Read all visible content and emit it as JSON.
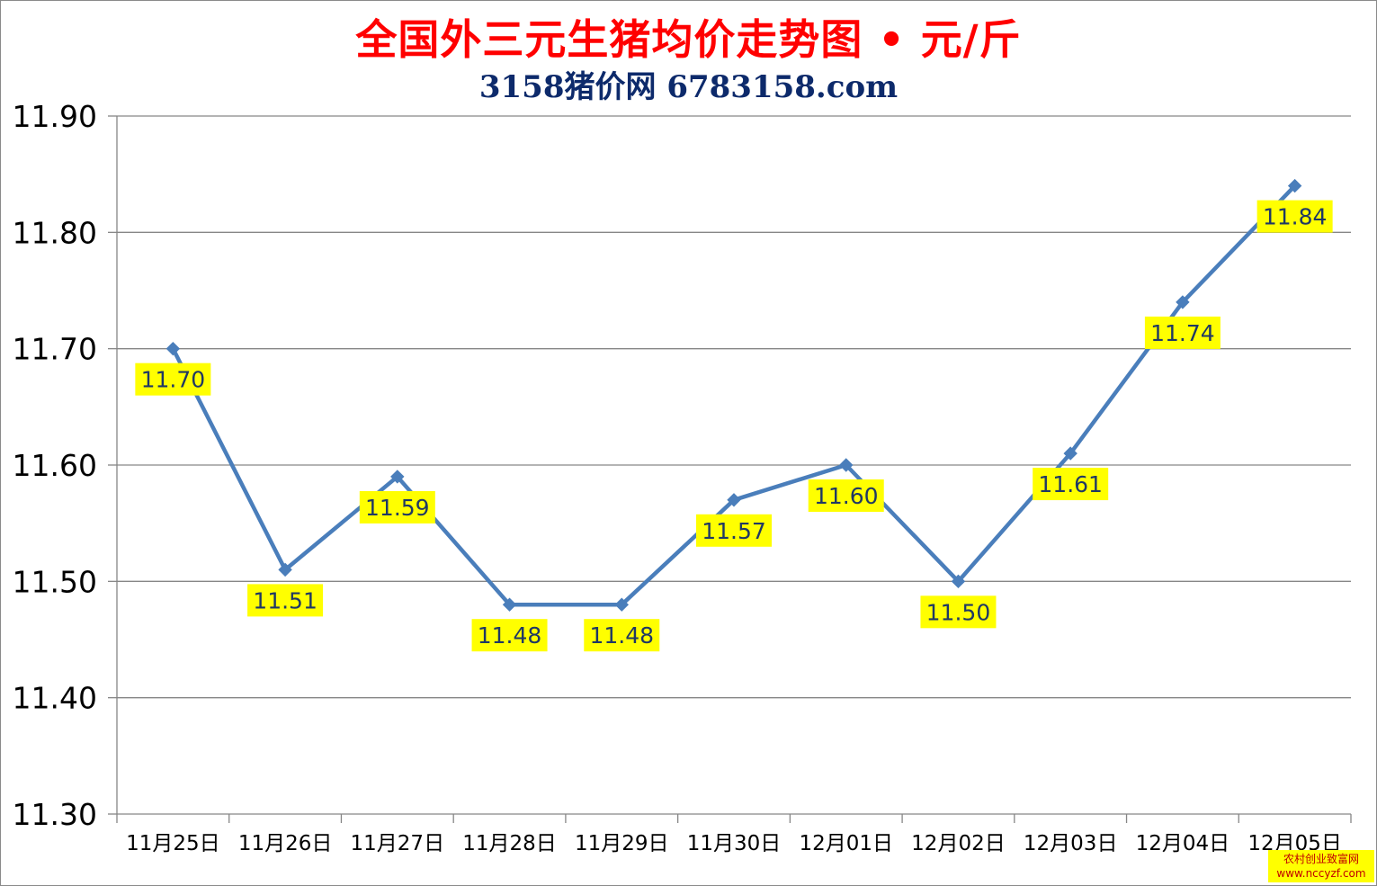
{
  "title": "全国外三元生猪均价走势图 • 元/斤",
  "subtitle": "3158猪价网  6783158.com",
  "watermark": {
    "line1": "农村创业致富网",
    "line2": "www.nccyzf.com"
  },
  "colors": {
    "title": "#ff0000",
    "subtitle": "#0d2a6b",
    "line": "#4a7ebb",
    "label_bg": "#ffff00",
    "label_text": "#1f3864",
    "grid": "#868686"
  },
  "chart_data": {
    "type": "line",
    "categories": [
      "11月25日",
      "11月26日",
      "11月27日",
      "11月28日",
      "11月29日",
      "11月30日",
      "12月01日",
      "12月02日",
      "12月03日",
      "12月04日",
      "12月05日"
    ],
    "values": [
      11.7,
      11.51,
      11.59,
      11.48,
      11.48,
      11.57,
      11.6,
      11.5,
      11.61,
      11.74,
      11.84
    ],
    "data_labels": [
      "11.70",
      "11.51",
      "11.59",
      "11.48",
      "11.48",
      "11.57",
      "11.60",
      "11.50",
      "11.61",
      "11.74",
      "11.84"
    ],
    "label_positions": [
      "below",
      "below",
      "below",
      "below",
      "below",
      "below",
      "below",
      "below",
      "below",
      "below",
      "below"
    ],
    "yticks": [
      "11.30",
      "11.40",
      "11.50",
      "11.60",
      "11.70",
      "11.80",
      "11.90"
    ],
    "ylim": [
      11.3,
      11.9
    ],
    "grid": true,
    "marker": "diamond",
    "xlabel": "",
    "ylabel": ""
  }
}
